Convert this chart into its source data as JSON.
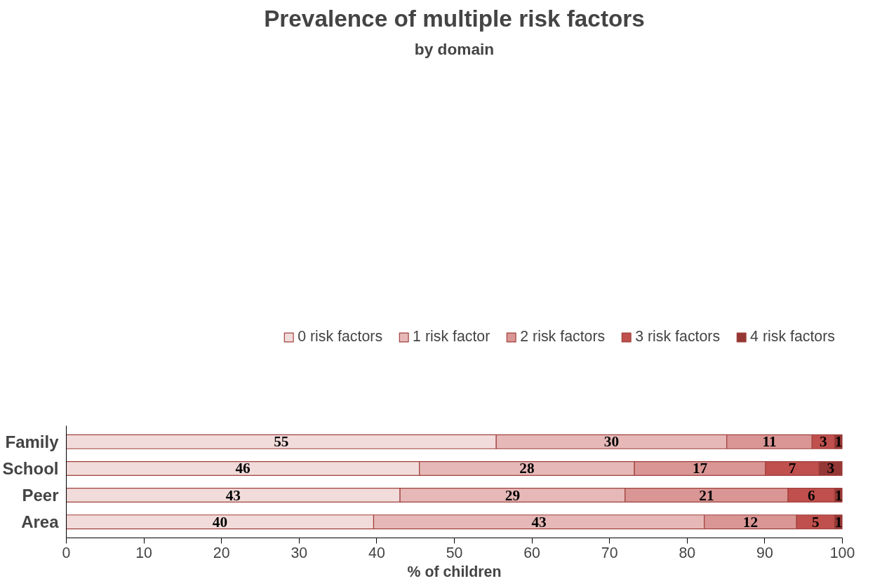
{
  "chart_data": {
    "type": "bar",
    "orientation": "horizontal",
    "stacked": true,
    "title": "Prevalence of multiple risk factors",
    "subtitle": "by domain",
    "xlabel": "% of children",
    "categories": [
      "Family",
      "School",
      "Peer",
      "Area"
    ],
    "series": [
      {
        "name": "0 risk factors",
        "color": "#f2dcdb",
        "values": [
          55.4,
          45.5,
          43,
          39.6
        ],
        "value_labels": [
          "55",
          "46",
          "43",
          "40"
        ]
      },
      {
        "name": "1 risk factor",
        "color": "#e6b9b8",
        "values": [
          29.7,
          27.7,
          29,
          42.6
        ],
        "value_labels": [
          "30",
          "28",
          "29",
          "43"
        ]
      },
      {
        "name": "2 risk factors",
        "color": "#d99694",
        "values": [
          11,
          16.9,
          21,
          11.9
        ],
        "value_labels": [
          "11",
          "17",
          "21",
          "12"
        ]
      },
      {
        "name": "3 risk factors",
        "color": "#c0504d",
        "values": [
          2.9,
          6.9,
          6,
          4.9
        ],
        "value_labels": [
          "3",
          "7",
          "6",
          "5"
        ]
      },
      {
        "name": "4 risk factors",
        "color": "#953735",
        "values": [
          1,
          3,
          1,
          1
        ],
        "value_labels": [
          "1",
          "3",
          "1",
          "1"
        ]
      }
    ],
    "xlim": [
      0,
      100
    ],
    "xticks": [
      0,
      10,
      20,
      30,
      40,
      50,
      60,
      70,
      80,
      90,
      100
    ],
    "grid": false,
    "legend": "top"
  }
}
